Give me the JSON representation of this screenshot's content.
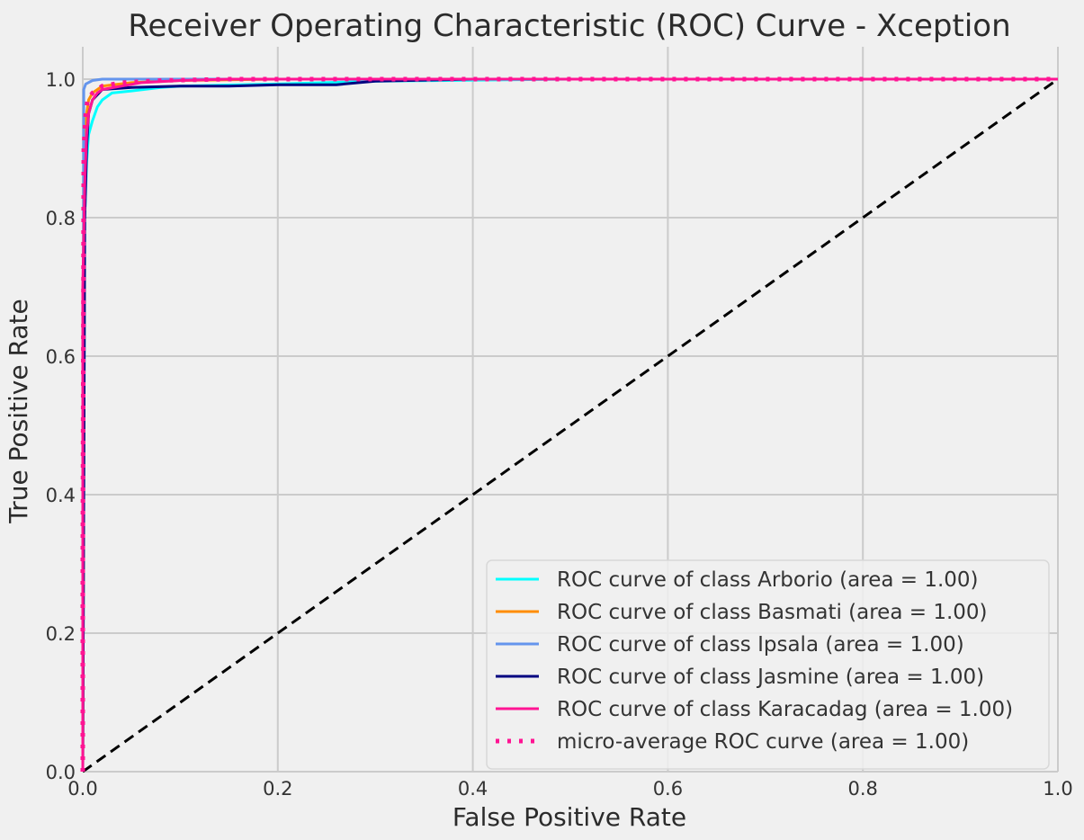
{
  "chart_data": {
    "type": "line",
    "title": "Receiver Operating Characteristic (ROC) Curve - Xception",
    "xlabel": "False Positive Rate",
    "ylabel": "True Positive Rate",
    "xlim": [
      0.0,
      1.0
    ],
    "ylim": [
      0.0,
      1.0
    ],
    "xticks": [
      "0.0",
      "0.2",
      "0.4",
      "0.6",
      "0.8",
      "1.0"
    ],
    "yticks": [
      "0.0",
      "0.2",
      "0.4",
      "0.6",
      "0.8",
      "1.0"
    ],
    "grid": true,
    "legend_position": "lower-right",
    "series": [
      {
        "name": "ROC curve of class Arborio (area = 1.00)",
        "color": "#00ffff",
        "style": "solid",
        "x": [
          0.0,
          0.002,
          0.004,
          0.006,
          0.01,
          0.015,
          0.02,
          0.03,
          0.05,
          0.08,
          0.1,
          0.2,
          0.3,
          0.5,
          1.0
        ],
        "y": [
          0.0,
          0.8,
          0.88,
          0.92,
          0.94,
          0.96,
          0.97,
          0.98,
          0.983,
          0.988,
          0.99,
          0.993,
          0.997,
          1.0,
          1.0
        ]
      },
      {
        "name": "ROC curve of class Basmati (area = 1.00)",
        "color": "#ff8c00",
        "style": "solid",
        "x": [
          0.0,
          0.002,
          0.004,
          0.006,
          0.01,
          0.02,
          0.05,
          0.1,
          0.2,
          1.0
        ],
        "y": [
          0.0,
          0.9,
          0.95,
          0.97,
          0.98,
          0.99,
          0.995,
          0.998,
          1.0,
          1.0
        ]
      },
      {
        "name": "ROC curve of class Ipsala (area = 1.00)",
        "color": "#6495ed",
        "style": "solid",
        "x": [
          0.0,
          0.001,
          0.003,
          0.01,
          0.02,
          0.05,
          1.0
        ],
        "y": [
          0.0,
          0.985,
          0.993,
          0.998,
          1.0,
          1.0,
          1.0
        ]
      },
      {
        "name": "ROC curve of class Jasmine (area = 1.00)",
        "color": "#000080",
        "style": "solid",
        "x": [
          0.0,
          0.002,
          0.004,
          0.006,
          0.01,
          0.02,
          0.05,
          0.1,
          0.15,
          0.2,
          0.26,
          0.3,
          0.4,
          1.0
        ],
        "y": [
          0.0,
          0.8,
          0.9,
          0.95,
          0.97,
          0.985,
          0.988,
          0.99,
          0.99,
          0.992,
          0.992,
          0.997,
          1.0,
          1.0
        ]
      },
      {
        "name": "ROC curve of class Karacadag (area = 1.00)",
        "color": "#ff1493",
        "style": "solid",
        "x": [
          0.0,
          0.0,
          0.002,
          0.004,
          0.006,
          0.01,
          0.015,
          0.02,
          0.04,
          0.06,
          0.1,
          0.15,
          1.0
        ],
        "y": [
          0.0,
          0.7,
          0.85,
          0.92,
          0.95,
          0.97,
          0.98,
          0.985,
          0.99,
          0.995,
          0.998,
          1.0,
          1.0
        ]
      },
      {
        "name": "micro-average ROC curve (area = 1.00)",
        "color": "#ff1493",
        "style": "dotted",
        "x": [
          0.0,
          0.0,
          0.001,
          0.003,
          0.005,
          0.01,
          0.02,
          0.04,
          0.08,
          0.15,
          0.3,
          1.0
        ],
        "y": [
          0.0,
          0.3,
          0.9,
          0.95,
          0.97,
          0.98,
          0.99,
          0.995,
          0.998,
          1.0,
          1.0,
          1.0
        ]
      },
      {
        "name": "",
        "color": "#000000",
        "style": "dashed",
        "x": [
          0.0,
          1.0
        ],
        "y": [
          0.0,
          1.0
        ]
      }
    ]
  }
}
